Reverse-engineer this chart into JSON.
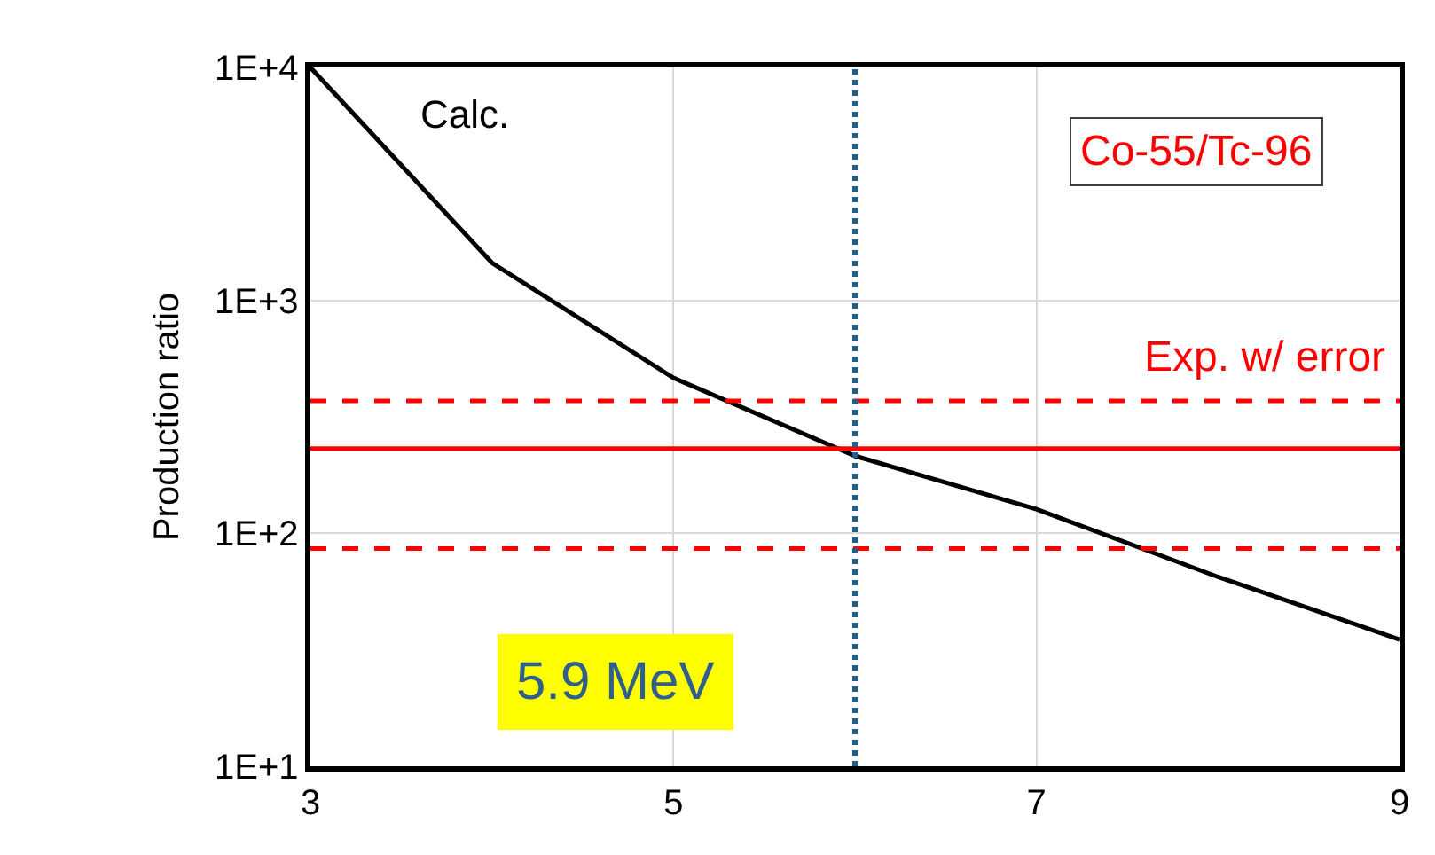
{
  "chart_data": {
    "type": "line",
    "ylabel": "Production ratio",
    "log": "y",
    "x": [
      3,
      4,
      5,
      6,
      7,
      8,
      9
    ],
    "series": [
      {
        "name": "Calc.",
        "color": "#000000",
        "values": [
          10000,
          1450,
          465,
          215,
          127,
          65,
          35
        ]
      }
    ],
    "xlim": [
      3,
      9
    ],
    "xticks": [
      3,
      5,
      7,
      9
    ],
    "ylim": [
      10,
      10000
    ],
    "yticks": [
      {
        "value": 10,
        "label": "1E+1"
      },
      {
        "value": 100,
        "label": "1E+2"
      },
      {
        "value": 1000,
        "label": "1E+3"
      },
      {
        "value": 10000,
        "label": "1E+4"
      }
    ],
    "grid": true,
    "legend": false,
    "marker": "none",
    "line_style": "solid",
    "ref_lines": [
      {
        "axis": "y",
        "value": 231,
        "color": "#ff0000",
        "line_style": "solid"
      },
      {
        "axis": "y",
        "value": 370,
        "color": "#ff0000",
        "line_style": "dashed"
      },
      {
        "axis": "y",
        "value": 86,
        "color": "#ff0000",
        "line_style": "dashed"
      },
      {
        "axis": "x",
        "value": 6,
        "color": "#1f5f8b",
        "line_style": "dotted"
      }
    ],
    "annotations": [
      "Co-55/Tc-96",
      "Exp. w/ error",
      "5.9 MeV"
    ]
  }
}
